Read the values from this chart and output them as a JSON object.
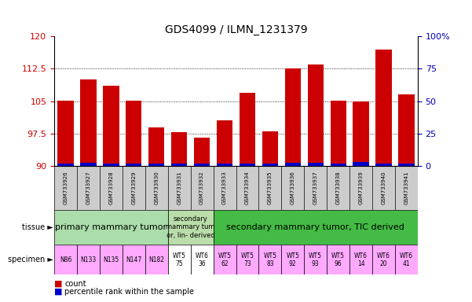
{
  "title": "GDS4099 / ILMN_1231379",
  "samples": [
    "GSM733926",
    "GSM733927",
    "GSM733928",
    "GSM733929",
    "GSM733930",
    "GSM733931",
    "GSM733932",
    "GSM733933",
    "GSM733934",
    "GSM733935",
    "GSM733936",
    "GSM733937",
    "GSM733938",
    "GSM733939",
    "GSM733940",
    "GSM733941"
  ],
  "red_values": [
    105.1,
    110.0,
    108.5,
    105.2,
    99.0,
    97.8,
    96.5,
    100.5,
    107.0,
    98.0,
    112.5,
    113.5,
    105.2,
    105.0,
    117.0,
    106.5
  ],
  "blue_values": [
    0.5,
    0.7,
    0.6,
    0.6,
    0.5,
    0.5,
    0.5,
    0.5,
    0.5,
    0.5,
    0.7,
    0.7,
    0.5,
    0.9,
    0.5,
    0.5
  ],
  "ymin": 90,
  "ymax": 120,
  "yticks": [
    90,
    97.5,
    105,
    112.5,
    120
  ],
  "right_yticks": [
    0,
    25,
    50,
    75,
    100
  ],
  "bar_color": "#cc0000",
  "blue_color": "#0000cc",
  "tissue_group_colors": [
    "#aaddaa",
    "#bbddaa",
    "#44bb44"
  ],
  "tissue_group_labels": [
    "primary mammary tumor",
    "secondary\nmammary tum\nor, lin- derived",
    "secondary mammary tumor, TIC derived"
  ],
  "tissue_group_starts": [
    -0.5,
    4.5,
    6.5
  ],
  "tissue_group_ends": [
    4.5,
    6.5,
    15.5
  ],
  "specimen_labels": [
    "N86",
    "N133",
    "N135",
    "N147",
    "N182",
    "WT5\n75",
    "WT6\n36",
    "WT5\n62",
    "WT5\n73",
    "WT5\n83",
    "WT5\n92",
    "WT5\n93",
    "WT5\n96",
    "WT6\n14",
    "WT6\n20",
    "WT6\n41"
  ],
  "specimen_colors": [
    "#ffaaff",
    "#ffaaff",
    "#ffaaff",
    "#ffaaff",
    "#ffaaff",
    "#ffffff",
    "#ffffff",
    "#ffaaff",
    "#ffaaff",
    "#ffaaff",
    "#ffaaff",
    "#ffaaff",
    "#ffaaff",
    "#ffaaff",
    "#ffaaff",
    "#ffaaff"
  ],
  "bar_color_legend": "#cc0000",
  "pct_color_legend": "#0000cc",
  "left_tick_color": "#cc0000",
  "right_tick_color": "#0000bb",
  "xticklabel_bg": "#cccccc",
  "tissue_fontsize": 7,
  "specimen_fontsize": 6
}
